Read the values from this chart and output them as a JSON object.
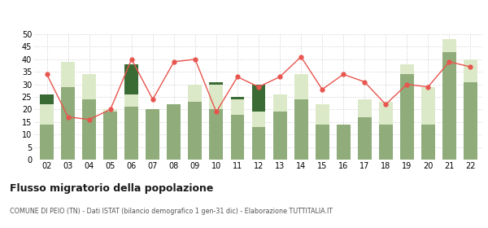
{
  "years": [
    "02",
    "03",
    "04",
    "05",
    "06",
    "07",
    "08",
    "09",
    "10",
    "11",
    "12",
    "13",
    "14",
    "15",
    "16",
    "17",
    "18",
    "19",
    "20",
    "21",
    "22"
  ],
  "iscritti_comuni": [
    14,
    29,
    24,
    19,
    21,
    20,
    22,
    23,
    20,
    18,
    13,
    19,
    24,
    14,
    14,
    17,
    14,
    34,
    14,
    43,
    31
  ],
  "iscritti_estero": [
    8,
    10,
    10,
    1,
    5,
    0,
    0,
    7,
    10,
    6,
    6,
    7,
    10,
    8,
    0,
    7,
    9,
    4,
    15,
    5,
    9
  ],
  "iscritti_altri": [
    4,
    0,
    0,
    0,
    12,
    0,
    0,
    0,
    1,
    1,
    11,
    0,
    0,
    0,
    0,
    0,
    0,
    0,
    0,
    0,
    0
  ],
  "cancellati": [
    34,
    17,
    16,
    20,
    40,
    24,
    39,
    40,
    19,
    33,
    29,
    33,
    41,
    28,
    34,
    31,
    22,
    30,
    29,
    39,
    37
  ],
  "color_comuni": "#8fac7a",
  "color_estero": "#dce9c8",
  "color_altri": "#3a6b35",
  "color_cancellati": "#e8554e",
  "title": "Flusso migratorio della popolazione",
  "subtitle": "COMUNE DI PEIO (TN) - Dati ISTAT (bilancio demografico 1 gen-31 dic) - Elaborazione TUTTITALIA.IT",
  "ylim": [
    0,
    50
  ],
  "yticks": [
    0,
    5,
    10,
    15,
    20,
    25,
    30,
    35,
    40,
    45,
    50
  ],
  "background_color": "#ffffff",
  "grid_color": "#cccccc"
}
